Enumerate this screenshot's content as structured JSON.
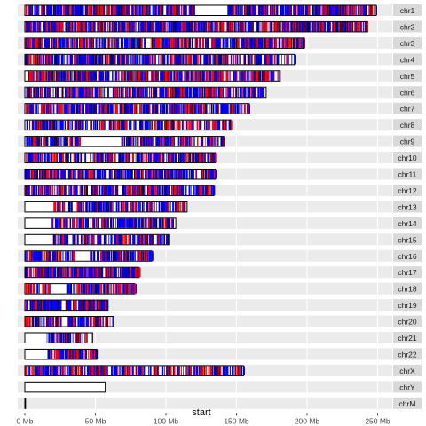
{
  "chart_data": {
    "type": "ideogram",
    "xlabel": "start",
    "x_unit": "Mb",
    "xlim": [
      0,
      262
    ],
    "x_ticks": [
      0,
      50,
      100,
      150,
      200,
      250
    ],
    "x_tick_labels": [
      "0 Mb",
      "50 Mb",
      "100 Mb",
      "150 Mb",
      "200 Mb",
      "250 Mb"
    ],
    "band_colors": {
      "red": "#ff0000",
      "blue": "#0000ff",
      "outline": "#000000",
      "strip": "#ebebeb"
    },
    "chromosomes": [
      {
        "name": "chr1",
        "length": 249,
        "gap": [
          120,
          143
        ],
        "density": 2.2
      },
      {
        "name": "chr2",
        "length": 243,
        "gap": null,
        "density": 2.2
      },
      {
        "name": "chr3",
        "length": 198,
        "gap": null,
        "density": 1.9
      },
      {
        "name": "chr4",
        "length": 191,
        "gap": null,
        "density": 1.6
      },
      {
        "name": "chr5",
        "length": 181,
        "gap": null,
        "density": 1.8
      },
      {
        "name": "chr6",
        "length": 171,
        "gap": [
          59,
          62
        ],
        "density": 1.8
      },
      {
        "name": "chr7",
        "length": 159,
        "gap": null,
        "density": 2.0
      },
      {
        "name": "chr8",
        "length": 146,
        "gap": null,
        "density": 1.5
      },
      {
        "name": "chr9",
        "length": 141,
        "gap": [
          39,
          68
        ],
        "density": 1.6
      },
      {
        "name": "chr10",
        "length": 135,
        "gap": null,
        "density": 1.6
      },
      {
        "name": "chr11",
        "length": 135,
        "gap": null,
        "density": 1.9
      },
      {
        "name": "chr12",
        "length": 134,
        "gap": null,
        "density": 1.8
      },
      {
        "name": "chr13",
        "length": 115,
        "gap": [
          0,
          19
        ],
        "density": 1.2
      },
      {
        "name": "chr14",
        "length": 107,
        "gap": [
          0,
          19
        ],
        "density": 1.6
      },
      {
        "name": "chr15",
        "length": 102,
        "gap": [
          0,
          20
        ],
        "density": 1.6
      },
      {
        "name": "chr16",
        "length": 90,
        "gap": [
          36,
          46
        ],
        "density": 2.0
      },
      {
        "name": "chr17",
        "length": 81,
        "gap": null,
        "density": 2.5
      },
      {
        "name": "chr18",
        "length": 78,
        "gap": [
          18,
          28
        ],
        "density": 1.4
      },
      {
        "name": "chr19",
        "length": 59,
        "gap": [
          25,
          28
        ],
        "density": 3.0
      },
      {
        "name": "chr20",
        "length": 63,
        "gap": [
          26,
          30
        ],
        "density": 1.8
      },
      {
        "name": "chr21",
        "length": 48,
        "gap": [
          0,
          14
        ],
        "density": 1.4
      },
      {
        "name": "chr22",
        "length": 51,
        "gap": [
          0,
          16
        ],
        "density": 2.4
      },
      {
        "name": "chrX",
        "length": 155,
        "gap": [
          58,
          61
        ],
        "density": 1.5
      },
      {
        "name": "chrY",
        "length": 57,
        "gap": [
          0,
          57
        ],
        "density": 0
      },
      {
        "name": "chrM",
        "length": 0.5,
        "gap": null,
        "density": 0
      }
    ]
  }
}
